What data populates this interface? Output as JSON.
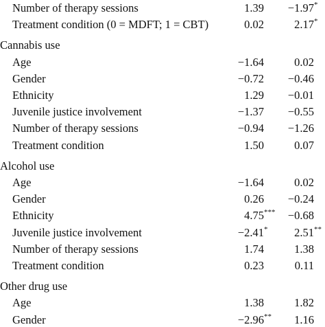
{
  "table": {
    "rows": [
      {
        "label": "Number of therapy sessions",
        "cells": [
          {
            "text": "1.39"
          },
          {
            "text": "−1.97",
            "sup": "*"
          }
        ]
      },
      {
        "label": "Treatment condition (0 = MDFT; 1 = CBT)",
        "cells": [
          {
            "text": "0.02"
          },
          {
            "text": "2.17",
            "sup": "*"
          }
        ]
      },
      {
        "heading": "Cannabis use"
      },
      {
        "label": "Age",
        "cells": [
          {
            "text": "−1.64"
          },
          {
            "text": "0.02"
          }
        ]
      },
      {
        "label": "Gender",
        "cells": [
          {
            "text": "−0.72"
          },
          {
            "text": "−0.46"
          }
        ]
      },
      {
        "label": "Ethnicity",
        "cells": [
          {
            "text": "1.29"
          },
          {
            "text": "−0.01"
          }
        ]
      },
      {
        "label": "Juvenile justice involvement",
        "cells": [
          {
            "text": "−1.37"
          },
          {
            "text": "−0.55"
          }
        ]
      },
      {
        "label": "Number of therapy sessions",
        "cells": [
          {
            "text": "−0.94"
          },
          {
            "text": "−1.26"
          }
        ]
      },
      {
        "label": "Treatment condition",
        "cells": [
          {
            "text": "1.50"
          },
          {
            "text": "0.07"
          }
        ]
      },
      {
        "heading": "Alcohol use"
      },
      {
        "label": "Age",
        "cells": [
          {
            "text": "−1.64"
          },
          {
            "text": "0.02"
          }
        ]
      },
      {
        "label": "Gender",
        "cells": [
          {
            "text": "0.26"
          },
          {
            "text": "−0.24"
          }
        ]
      },
      {
        "label": "Ethnicity",
        "cells": [
          {
            "text": "4.75",
            "sup": "***"
          },
          {
            "text": "−0.68"
          }
        ]
      },
      {
        "label": "Juvenile justice involvement",
        "cells": [
          {
            "text": "−2.41",
            "sup": "*"
          },
          {
            "text": "2.51",
            "sup": "**"
          }
        ]
      },
      {
        "label": "Number of therapy sessions",
        "cells": [
          {
            "text": "1.74"
          },
          {
            "text": "1.38"
          }
        ]
      },
      {
        "label": "Treatment condition",
        "cells": [
          {
            "text": "0.23"
          },
          {
            "text": "0.11"
          }
        ]
      },
      {
        "heading": "Other drug use"
      },
      {
        "label": "Age",
        "cells": [
          {
            "text": "1.38"
          },
          {
            "text": "1.82"
          }
        ]
      },
      {
        "label": "Gender",
        "cells": [
          {
            "text": "−2.96",
            "sup": "**"
          },
          {
            "text": "1.16"
          }
        ]
      }
    ]
  }
}
